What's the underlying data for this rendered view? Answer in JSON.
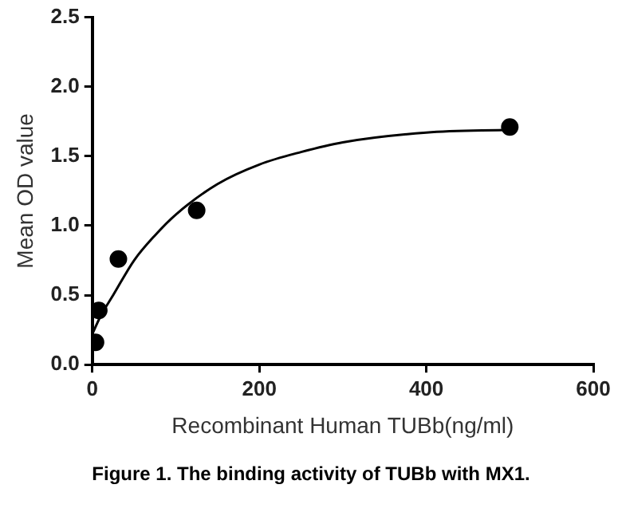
{
  "chart_data": {
    "type": "scatter",
    "xlabel": "Recombinant Human TUBb(ng/ml)",
    "ylabel": "Mean OD value",
    "annotations": [
      "Figure 1. The binding activity of TUBb with MX1."
    ],
    "xlim": [
      0,
      600
    ],
    "xticks": [
      0,
      200,
      400,
      600
    ],
    "ylim": [
      0,
      2.5
    ],
    "yticks": [
      {
        "value": 0,
        "label": "0.0"
      },
      {
        "value": 0.5,
        "label": "0.5"
      },
      {
        "value": 1,
        "label": "1.0"
      },
      {
        "value": 1.5,
        "label": "1.5"
      },
      {
        "value": 2,
        "label": "2.0"
      },
      {
        "value": 2.5,
        "label": "2.5"
      }
    ],
    "grid": false,
    "legend": false,
    "series": [
      {
        "color": "#000000",
        "marker": "circle",
        "x": [
          3.9,
          7.8,
          31.25,
          125,
          500
        ],
        "values": [
          0.16,
          0.39,
          0.76,
          1.11,
          1.71
        ]
      },
      {
        "type": "line",
        "color": "#000000",
        "marker": "none",
        "line_style": "solid",
        "x": [
          0,
          10,
          25,
          50,
          75,
          100,
          150,
          200,
          250,
          300,
          400,
          500
        ],
        "values": [
          0.22,
          0.35,
          0.5,
          0.75,
          0.93,
          1.08,
          1.3,
          1.44,
          1.53,
          1.6,
          1.67,
          1.69
        ]
      }
    ]
  }
}
